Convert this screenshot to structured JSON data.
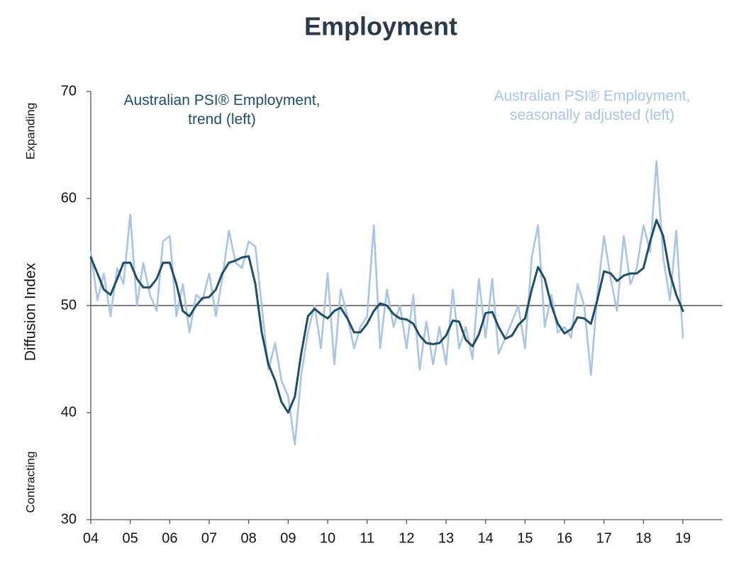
{
  "chart_data": {
    "type": "line",
    "title": "Employment",
    "y_label": "Diffusion Index",
    "annotations": [
      "Expanding",
      "Contracting"
    ],
    "reference_line": 50,
    "x": [
      2004,
      2004.17,
      2004.33,
      2004.5,
      2004.67,
      2004.83,
      2005,
      2005.17,
      2005.33,
      2005.5,
      2005.67,
      2005.83,
      2006,
      2006.17,
      2006.33,
      2006.5,
      2006.67,
      2006.83,
      2007,
      2007.17,
      2007.33,
      2007.5,
      2007.67,
      2007.83,
      2008,
      2008.17,
      2008.33,
      2008.5,
      2008.67,
      2008.83,
      2009,
      2009.17,
      2009.33,
      2009.5,
      2009.67,
      2009.83,
      2010,
      2010.17,
      2010.33,
      2010.5,
      2010.67,
      2010.83,
      2011,
      2011.17,
      2011.33,
      2011.5,
      2011.67,
      2011.83,
      2012,
      2012.17,
      2012.33,
      2012.5,
      2012.67,
      2012.83,
      2013,
      2013.17,
      2013.33,
      2013.5,
      2013.67,
      2013.83,
      2014,
      2014.17,
      2014.33,
      2014.5,
      2014.67,
      2014.83,
      2015,
      2015.17,
      2015.33,
      2015.5,
      2015.67,
      2015.83,
      2016,
      2016.17,
      2016.33,
      2016.5,
      2016.67,
      2016.83,
      2017,
      2017.17,
      2017.33,
      2017.5,
      2017.67,
      2017.83,
      2018,
      2018.17,
      2018.33,
      2018.5,
      2018.67,
      2018.83,
      2019
    ],
    "series": [
      {
        "name": "Australian PSI® Employment, seasonally adjusted (left)",
        "color": "#a9c4e4",
        "values": [
          55,
          50.5,
          53,
          49,
          53.5,
          52,
          58.5,
          50,
          54,
          51,
          49.5,
          56,
          56.5,
          49,
          52,
          47.5,
          51,
          50.5,
          53,
          49,
          52.5,
          57,
          54,
          53.5,
          56,
          55.5,
          50,
          44,
          46.5,
          43,
          41.5,
          37,
          43.5,
          47.5,
          50,
          46,
          53,
          44.5,
          51.5,
          49,
          46,
          48,
          49,
          57.5,
          46,
          51.5,
          48,
          50,
          46,
          51,
          44,
          48.5,
          44.5,
          48,
          44.5,
          51.5,
          46,
          48,
          45,
          52.5,
          47,
          52.5,
          45.5,
          47,
          48.5,
          50,
          46,
          54.5,
          57.5,
          48,
          51,
          47.5,
          48,
          47,
          52,
          50,
          43.5,
          51,
          56.5,
          52.5,
          49.5,
          56.5,
          52,
          53.5,
          57.5,
          55,
          63.5,
          54.5,
          50.5,
          57,
          47
        ]
      },
      {
        "name": "Australian PSI® Employment, trend (left)",
        "color": "#1f4e66",
        "values": [
          54.5,
          53,
          51.5,
          51,
          52.5,
          54,
          54,
          52.5,
          51.7,
          51.7,
          52.5,
          54,
          54,
          52,
          49.5,
          49,
          50,
          50.7,
          50.8,
          51.5,
          53,
          54,
          54.2,
          54.5,
          54.6,
          52,
          47.5,
          44.5,
          43,
          41,
          40,
          41.5,
          45.5,
          49,
          49.7,
          49.2,
          48.8,
          49.5,
          49.8,
          48.8,
          47.5,
          47.5,
          48.3,
          49.5,
          50.2,
          50,
          49.2,
          48.8,
          48.7,
          48.3,
          47.2,
          46.5,
          46.4,
          46.5,
          47.2,
          48.6,
          48.5,
          46.8,
          46.2,
          47.3,
          49.3,
          49.4,
          48,
          46.9,
          47.2,
          48.2,
          48.8,
          51.5,
          53.6,
          52.5,
          50,
          48.3,
          47.4,
          47.8,
          48.9,
          48.8,
          48.3,
          50.5,
          53.2,
          53,
          52.3,
          52.8,
          53,
          53,
          53.5,
          56,
          58,
          56.5,
          53,
          51,
          49.5
        ]
      }
    ],
    "xlim": [
      2004,
      2020
    ],
    "xticks": [
      {
        "value": 2004,
        "label": "04"
      },
      {
        "value": 2005,
        "label": "05"
      },
      {
        "value": 2006,
        "label": "06"
      },
      {
        "value": 2007,
        "label": "07"
      },
      {
        "value": 2008,
        "label": "08"
      },
      {
        "value": 2009,
        "label": "09"
      },
      {
        "value": 2010,
        "label": "10"
      },
      {
        "value": 2011,
        "label": "11"
      },
      {
        "value": 2012,
        "label": "12"
      },
      {
        "value": 2013,
        "label": "13"
      },
      {
        "value": 2014,
        "label": "14"
      },
      {
        "value": 2015,
        "label": "15"
      },
      {
        "value": 2016,
        "label": "16"
      },
      {
        "value": 2017,
        "label": "17"
      },
      {
        "value": 2018,
        "label": "18"
      },
      {
        "value": 2019,
        "label": "19"
      }
    ],
    "ylim": [
      30,
      70
    ],
    "yticks": [
      30,
      40,
      50,
      60,
      70
    ],
    "grid": false
  }
}
